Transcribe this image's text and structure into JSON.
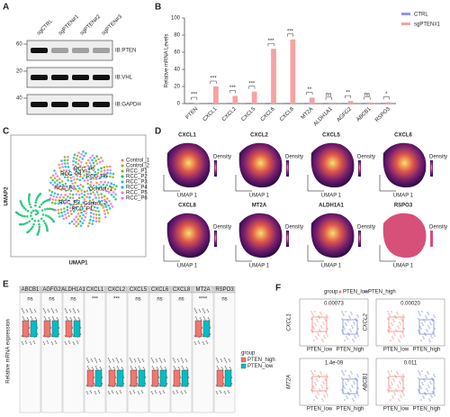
{
  "panel_labels": [
    "A",
    "B",
    "C",
    "D",
    "E",
    "F"
  ],
  "blot": {
    "lanes": [
      "sgCTRL",
      "sgPTEN#1",
      "sgPTEN#2",
      "sgPTEN#3"
    ],
    "rows": [
      {
        "label": "IB:PTEN",
        "marker": "60"
      },
      {
        "label": "IB:VHL",
        "marker": "20"
      },
      {
        "label": "IB:GAPDH",
        "marker": "40"
      }
    ]
  },
  "chart_data": [
    {
      "type": "bar",
      "y_label": "Relative mRNA Levels",
      "categories": [
        "PTEN",
        "CXCL1",
        "CXCL2",
        "CXCL5",
        "CXCL6",
        "CXCL8",
        "MT2A",
        "ALDH1A1",
        "AGFG2",
        "ABCB1",
        "RSPO3"
      ],
      "series": [
        {
          "name": "CTRL",
          "color": "#8e93f0",
          "values": [
            1,
            1,
            1,
            1,
            1,
            1,
            1,
            1,
            1,
            1,
            1
          ]
        },
        {
          "name": "sgPTEN#1",
          "color": "#f5a3a3",
          "values": [
            0.3,
            20,
            9,
            14,
            64,
            75,
            7,
            1.2,
            3,
            1.3,
            1.6
          ]
        }
      ],
      "annotations": [
        "***",
        "***",
        "***",
        "***",
        "***",
        "***",
        "**",
        "ns",
        "**",
        "ns",
        "*"
      ],
      "ylim": [
        0,
        100
      ],
      "yticks": [
        0,
        20,
        40,
        60,
        80,
        100
      ],
      "legend": "upper right"
    }
  ],
  "umap": {
    "x_label": "UMAP1",
    "y_label": "UMAP2",
    "clusters": [
      {
        "name": "Control_1",
        "color": "#f3766e"
      },
      {
        "name": "Control_2",
        "color": "#c49a00"
      },
      {
        "name": "RCC_P1",
        "color": "#7cae00"
      },
      {
        "name": "RCC_P2",
        "color": "#00be67"
      },
      {
        "name": "RCC_P3",
        "color": "#00bfc4"
      },
      {
        "name": "RCC_P4",
        "color": "#00a9ff"
      },
      {
        "name": "RCC_P5",
        "color": "#c77cff"
      },
      {
        "name": "RCC_P6",
        "color": "#ff61cc"
      }
    ]
  },
  "density": {
    "genes": [
      "CXCL1",
      "CXCL2",
      "CXCL5",
      "CXCL6",
      "CXCL8",
      "MT2A",
      "ALDH1A1",
      "RSPO3"
    ],
    "legend_title": "Density",
    "x_label": "UMAP 1",
    "y_label": "UMAP 2"
  },
  "expression": {
    "y_label": "Relative mRNA expression",
    "genes": [
      "ABCB1",
      "AGFG2",
      "ALDH1A1",
      "CXCL1",
      "CXCL2",
      "CXCL5",
      "CXCL6",
      "CXCL8",
      "MT2A",
      "RSPO3"
    ],
    "significance": [
      "ns",
      "ns",
      "ns",
      "***",
      "***",
      "ns",
      "ns",
      "ns",
      "****",
      "ns"
    ],
    "legend_title": "group",
    "groups": [
      {
        "name": "PTEN_high",
        "color": "#f3766e"
      },
      {
        "name": "PTEN_low",
        "color": "#00bfc4"
      }
    ]
  },
  "boxplots": {
    "legend_title": "group",
    "groups": [
      {
        "name": "PTEN_low",
        "color": "#f3766e"
      },
      {
        "name": "PTEN_high",
        "color": "#6f7bd8"
      }
    ],
    "panels": [
      {
        "gene": "CXCL1",
        "p": "0.00073"
      },
      {
        "gene": "CXCL2",
        "p": "0.00020"
      },
      {
        "gene": "MT2A",
        "p": "1.4e-09"
      },
      {
        "gene": "ABCB1",
        "p": "0.011"
      }
    ]
  }
}
